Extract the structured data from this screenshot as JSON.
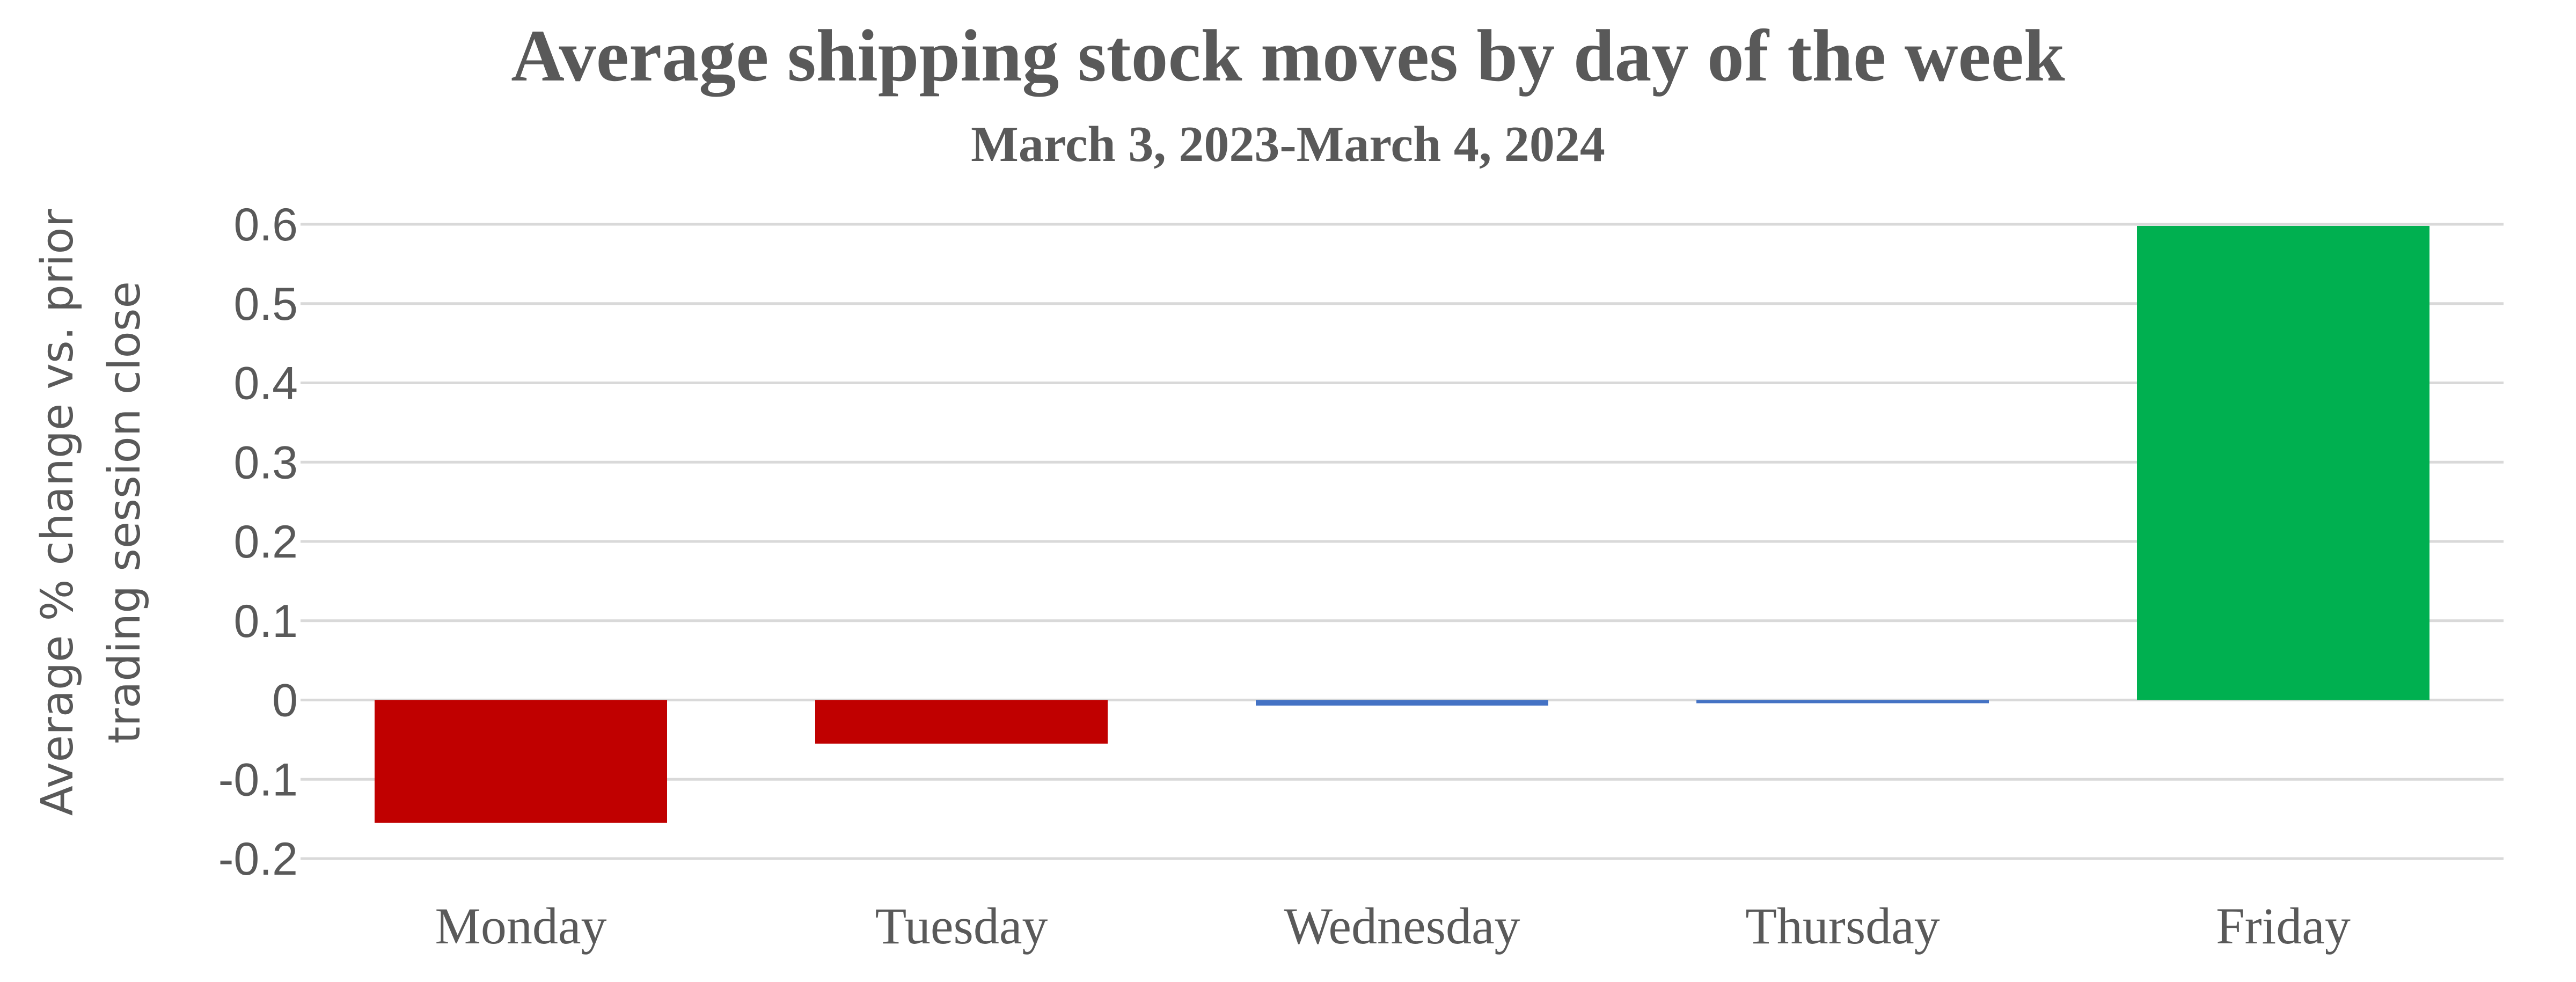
{
  "chart_data": {
    "type": "bar",
    "title": "Average shipping stock moves by day of the week",
    "subtitle": "March 3, 2023-March 4, 2024",
    "ylabel_lines": [
      "Average % change vs. prior",
      "trading session close"
    ],
    "xlabel": "",
    "categories": [
      "Monday",
      "Tuesday",
      "Wednesday",
      "Thursday",
      "Friday"
    ],
    "values": [
      -0.155,
      -0.055,
      -0.007,
      -0.004,
      0.598
    ],
    "bar_colors": [
      "#C00000",
      "#C00000",
      "#4472C4",
      "#4472C4",
      "#00B050"
    ],
    "ylim": [
      -0.2,
      0.6
    ],
    "yticks": [
      -0.2,
      -0.1,
      0,
      0.1,
      0.2,
      0.3,
      0.4,
      0.5,
      0.6
    ],
    "ytick_labels": [
      "-0.2",
      "-0.1",
      "0",
      "0.1",
      "0.2",
      "0.3",
      "0.4",
      "0.5",
      "0.6"
    ],
    "grid": true,
    "gridline_color": "#D9D9D9"
  }
}
